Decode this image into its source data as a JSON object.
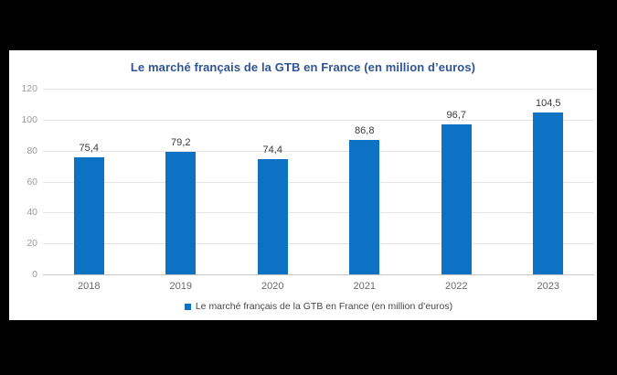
{
  "page": {
    "background_color": "#000000",
    "card_background_color": "#FFFFFF"
  },
  "chart": {
    "title": "Le marché français de la GTB en France (en million d’euros)",
    "title_color": "#2F5496",
    "bar_color": "#0D72C4",
    "gridline_color": "#E4E4E4",
    "axis_line_color": "#C6C6C6",
    "legend": {
      "marker_color": "#0D72C4",
      "label": "Le marché français de la GTB en France (en million d’euros)"
    }
  },
  "chart_data": {
    "type": "bar",
    "title": "Le marché français de la GTB en France (en million d’euros)",
    "categories": [
      "2018",
      "2019",
      "2020",
      "2021",
      "2022",
      "2023"
    ],
    "values": [
      75.4,
      79.2,
      74.4,
      86.8,
      96.7,
      104.5
    ],
    "value_labels": [
      "75,4",
      "79,2",
      "74,4",
      "86,8",
      "96,7",
      "104,5"
    ],
    "xlabel": "",
    "ylabel": "",
    "ylim": [
      0,
      120
    ],
    "y_ticks": [
      0,
      20,
      40,
      60,
      80,
      100,
      120
    ],
    "grid": true,
    "legend_position": "bottom",
    "legend_entries": [
      "Le marché français de la GTB en France (en million d’euros)"
    ]
  }
}
